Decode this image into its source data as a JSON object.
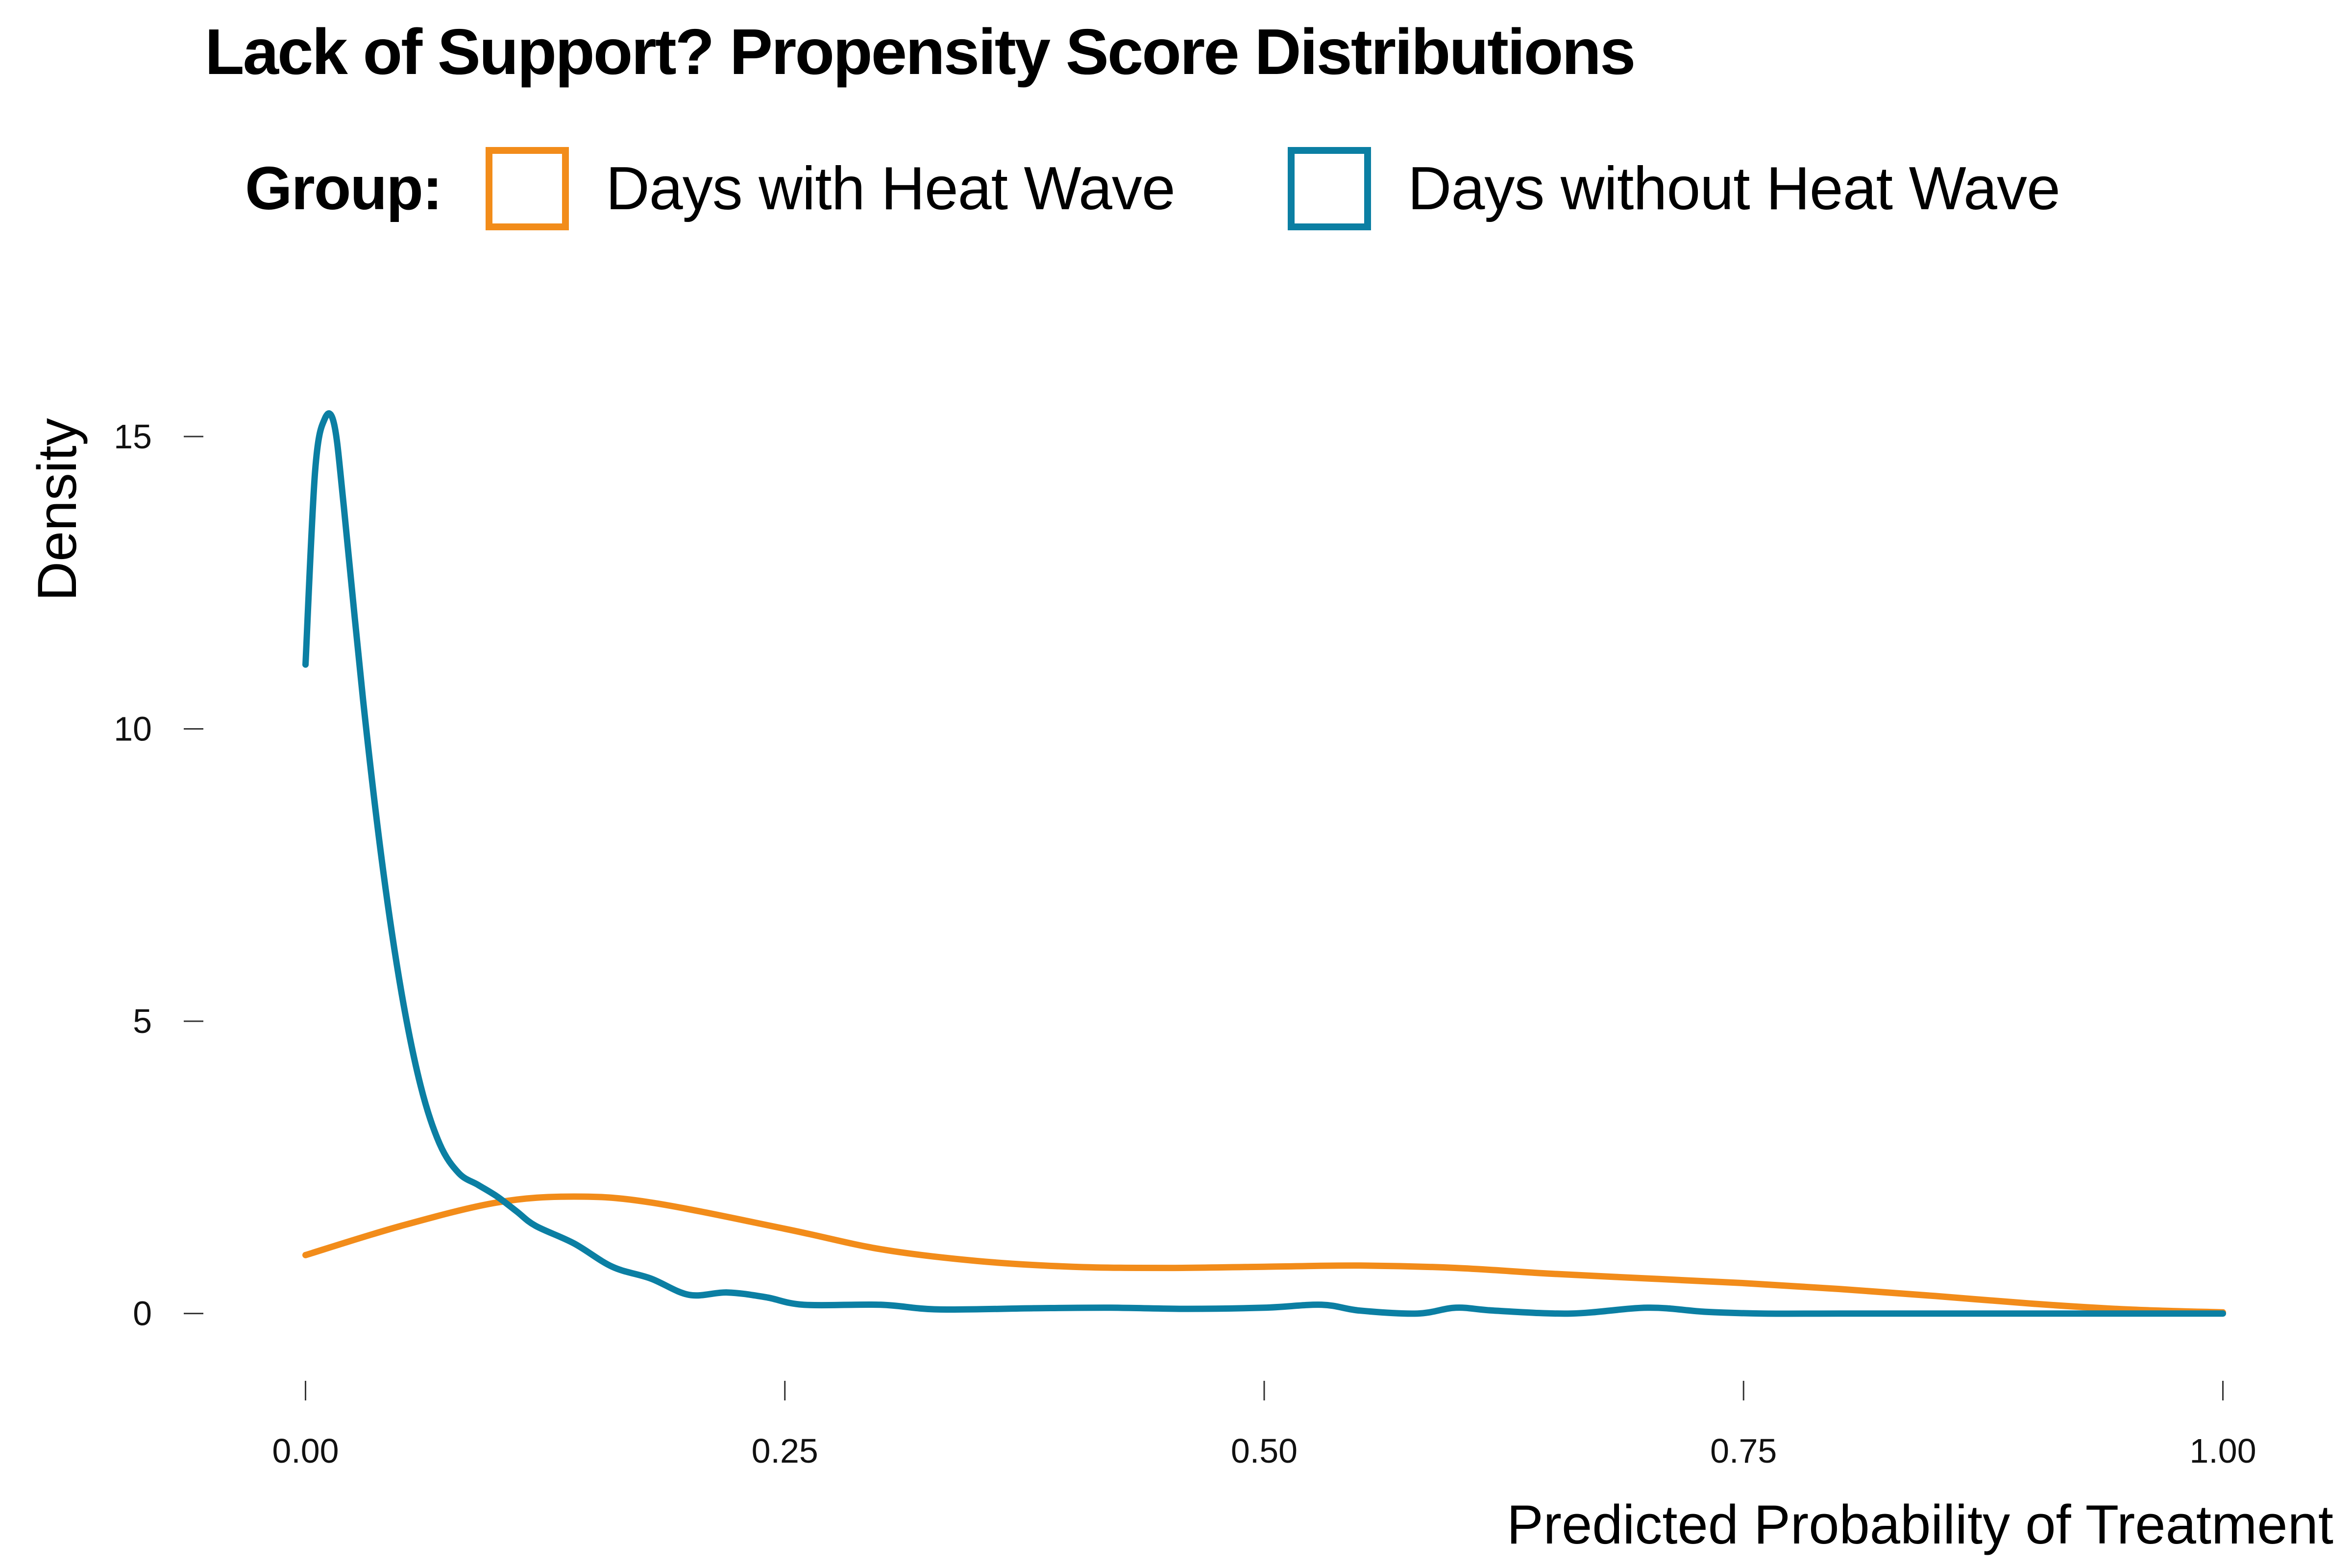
{
  "chart_data": {
    "type": "line",
    "title": "Lack of Support? Propensity Score Distributions",
    "xlabel": "Predicted Probability of Treatment",
    "ylabel": "Density",
    "xlim": [
      -0.052,
      1.052
    ],
    "ylim": [
      -1.0,
      16.6
    ],
    "x_ticks": [
      0.0,
      0.25,
      0.5,
      0.75,
      1.0
    ],
    "x_tick_labels": [
      "0.00",
      "0.25",
      "0.50",
      "0.75",
      "1.00"
    ],
    "y_ticks": [
      0,
      5,
      10,
      15
    ],
    "y_tick_labels": [
      "0",
      "5",
      "10",
      "15"
    ],
    "grid": false,
    "legend": {
      "title": "Group:",
      "placement": "top",
      "entries": [
        "Days with Heat Wave",
        "Days without Heat Wave"
      ]
    },
    "series": [
      {
        "name": "Days with Heat Wave",
        "color": "#F28C1A",
        "points": [
          [
            0.0,
            1.0
          ],
          [
            0.05,
            1.5
          ],
          [
            0.1,
            1.9
          ],
          [
            0.14,
            2.0
          ],
          [
            0.18,
            1.9
          ],
          [
            0.25,
            1.45
          ],
          [
            0.3,
            1.1
          ],
          [
            0.35,
            0.9
          ],
          [
            0.4,
            0.8
          ],
          [
            0.45,
            0.78
          ],
          [
            0.5,
            0.8
          ],
          [
            0.55,
            0.82
          ],
          [
            0.6,
            0.78
          ],
          [
            0.65,
            0.68
          ],
          [
            0.7,
            0.6
          ],
          [
            0.75,
            0.52
          ],
          [
            0.8,
            0.42
          ],
          [
            0.85,
            0.3
          ],
          [
            0.9,
            0.17
          ],
          [
            0.95,
            0.07
          ],
          [
            1.0,
            0.02
          ]
        ]
      },
      {
        "name": "Days without Heat Wave",
        "color": "#0B7FA3",
        "points": [
          [
            0.0,
            11.1
          ],
          [
            0.005,
            14.4
          ],
          [
            0.01,
            15.3
          ],
          [
            0.015,
            15.2
          ],
          [
            0.02,
            13.8
          ],
          [
            0.03,
            10.5
          ],
          [
            0.04,
            7.7
          ],
          [
            0.05,
            5.5
          ],
          [
            0.06,
            3.9
          ],
          [
            0.07,
            2.9
          ],
          [
            0.08,
            2.4
          ],
          [
            0.09,
            2.2
          ],
          [
            0.1,
            2.0
          ],
          [
            0.11,
            1.75
          ],
          [
            0.12,
            1.5
          ],
          [
            0.14,
            1.2
          ],
          [
            0.16,
            0.8
          ],
          [
            0.18,
            0.6
          ],
          [
            0.2,
            0.32
          ],
          [
            0.22,
            0.36
          ],
          [
            0.24,
            0.28
          ],
          [
            0.26,
            0.15
          ],
          [
            0.3,
            0.15
          ],
          [
            0.33,
            0.07
          ],
          [
            0.38,
            0.09
          ],
          [
            0.42,
            0.1
          ],
          [
            0.46,
            0.08
          ],
          [
            0.5,
            0.1
          ],
          [
            0.53,
            0.15
          ],
          [
            0.55,
            0.05
          ],
          [
            0.58,
            0.0
          ],
          [
            0.6,
            0.1
          ],
          [
            0.62,
            0.05
          ],
          [
            0.66,
            0.0
          ],
          [
            0.7,
            0.1
          ],
          [
            0.73,
            0.03
          ],
          [
            0.76,
            0.0
          ],
          [
            0.8,
            0.0
          ],
          [
            0.85,
            0.0
          ],
          [
            0.9,
            0.0
          ],
          [
            0.95,
            0.0
          ],
          [
            1.0,
            0.0
          ]
        ]
      }
    ]
  }
}
